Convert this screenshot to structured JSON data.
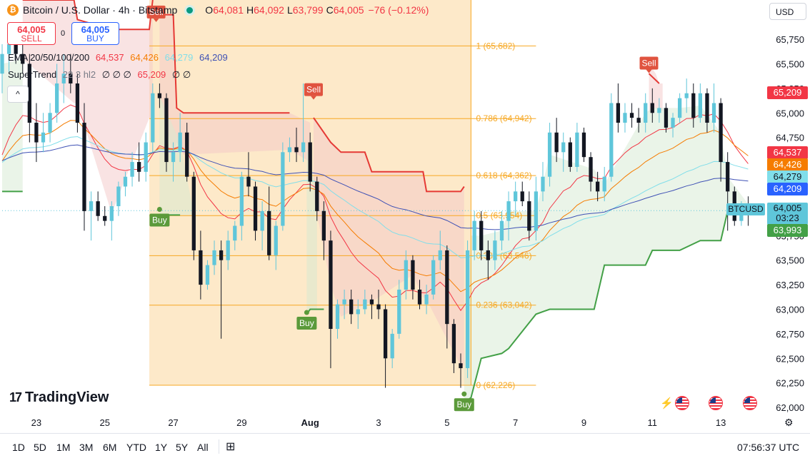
{
  "header": {
    "coin_glyph": "₿",
    "title": "Bitcoin / U.S. Dollar · 4h · Bitstamp",
    "o_label": "O",
    "o_value": "64,081",
    "h_label": "H",
    "h_value": "64,092",
    "l_label": "L",
    "l_value": "63,799",
    "c_label": "C",
    "c_value": "64,005",
    "change": "−76 (−0.12%)"
  },
  "trade": {
    "sell_price": "64,005",
    "sell_label": "SELL",
    "spread": "0",
    "buy_price": "64,005",
    "buy_label": "BUY"
  },
  "indicators": {
    "ema_label": "EMA 20/50/100/200",
    "ema_values": [
      "64,537",
      "64,426",
      "64,279",
      "64,209"
    ],
    "st_label": "SuperTrend",
    "st_params": "22 3 hl2",
    "st_nulls": "∅ ∅ ∅",
    "st_value": "65,209",
    "st_tail": "∅ ∅",
    "collapse_glyph": "^"
  },
  "currency_button": "USD",
  "symbol_tag": "BTCUSD",
  "price_now": "64,005",
  "countdown": "03:23",
  "price_labels": [
    "65,209",
    "64,537",
    "64,426",
    "64,279",
    "64,209",
    "63,993"
  ],
  "logo": {
    "mark": "17",
    "text": "TradingView"
  },
  "bottom": {
    "ranges": [
      "1D",
      "5D",
      "1M",
      "3M",
      "6M",
      "YTD",
      "1Y",
      "5Y",
      "All"
    ],
    "calendar_glyph": "⊞",
    "clock": "07:56:37 UTC",
    "gear_glyph": "⚙"
  },
  "colors": {
    "up": "#5fc6da",
    "down": "#131722",
    "ema20": "#f23645",
    "ema50": "#f57c00",
    "ema100": "#80deea",
    "ema200": "#3f51b5",
    "st_up": "#43a047",
    "st_down": "#e53935",
    "fib": "#f7a823"
  },
  "chart_data": {
    "type": "candlestick",
    "y_ticks": [
      62000,
      62250,
      62500,
      62750,
      63000,
      63250,
      63500,
      63750,
      64000,
      64250,
      64500,
      64750,
      65000,
      65250,
      65500,
      65750
    ],
    "ylim": [
      61950,
      66150
    ],
    "x_ticks": [
      "23",
      "25",
      "27",
      "29",
      "Aug",
      "3",
      "5",
      "7",
      "9",
      "11",
      "13"
    ],
    "fib_levels": [
      {
        "ratio": "1",
        "value": 65682
      },
      {
        "ratio": "0.786",
        "value": 64942
      },
      {
        "ratio": "0.618",
        "value": 64362
      },
      {
        "ratio": "0.5",
        "value": 63954
      },
      {
        "ratio": "0.382",
        "value": 63546
      },
      {
        "ratio": "0.236",
        "value": 63042
      },
      {
        "ratio": "0",
        "value": 62226
      }
    ],
    "signals": [
      {
        "label": "Sell",
        "dir": "sell",
        "x": 26.5,
        "y": 66020
      },
      {
        "label": "Buy",
        "dir": "buy",
        "x": 26.6,
        "y": 63930
      },
      {
        "label": "Sell",
        "dir": "sell",
        "x": 31.1,
        "y": 65230
      },
      {
        "label": "Buy",
        "dir": "buy",
        "x": 30.9,
        "y": 62880
      },
      {
        "label": "Buy",
        "dir": "buy",
        "x": 35.5,
        "y": 62050
      },
      {
        "label": "Sell",
        "dir": "sell",
        "x": 40.9,
        "y": 65500
      }
    ],
    "current_price": 64005,
    "candles": [
      [
        22.0,
        65400,
        65700,
        65200,
        65600
      ],
      [
        22.2,
        65600,
        65900,
        65400,
        65700
      ],
      [
        22.4,
        65700,
        65900,
        65500,
        65600
      ],
      [
        22.6,
        65600,
        65750,
        65400,
        65500
      ],
      [
        22.8,
        65500,
        65600,
        64700,
        64900
      ],
      [
        23.0,
        64900,
        65100,
        64500,
        64700
      ],
      [
        23.2,
        64700,
        65000,
        64600,
        64800
      ],
      [
        23.4,
        64800,
        65100,
        64700,
        65000
      ],
      [
        23.6,
        65000,
        65500,
        64900,
        65300
      ],
      [
        23.8,
        65300,
        65600,
        65100,
        65400
      ],
      [
        24.0,
        65400,
        65600,
        65200,
        65300
      ],
      [
        24.2,
        65300,
        65400,
        64800,
        64900
      ],
      [
        24.4,
        64900,
        65100,
        63800,
        64000
      ],
      [
        24.6,
        64000,
        64200,
        63700,
        64100
      ],
      [
        24.8,
        64100,
        64200,
        63900,
        63950
      ],
      [
        25.0,
        63950,
        64050,
        63850,
        63900
      ],
      [
        25.2,
        63900,
        64100,
        63700,
        64050
      ],
      [
        25.4,
        64050,
        64300,
        63950,
        64250
      ],
      [
        25.6,
        64250,
        64400,
        64150,
        64350
      ],
      [
        25.8,
        64350,
        64600,
        64250,
        64500
      ],
      [
        26.0,
        64500,
        64700,
        64300,
        64400
      ],
      [
        26.2,
        64400,
        64800,
        64300,
        64700
      ],
      [
        26.4,
        64700,
        65300,
        64600,
        65200
      ],
      [
        26.6,
        65200,
        65300,
        65050,
        65150
      ],
      [
        26.8,
        65150,
        65200,
        64400,
        64500
      ],
      [
        27.0,
        64500,
        64700,
        64300,
        64600
      ],
      [
        27.2,
        64600,
        65000,
        64500,
        64800
      ],
      [
        27.4,
        64800,
        64900,
        64300,
        64350
      ],
      [
        27.6,
        64350,
        64400,
        63500,
        63600
      ],
      [
        27.8,
        63600,
        63800,
        63100,
        63250
      ],
      [
        28.0,
        63250,
        63500,
        63200,
        63450
      ],
      [
        28.2,
        63450,
        63700,
        63350,
        63600
      ],
      [
        28.4,
        63600,
        63700,
        62700,
        63500
      ],
      [
        28.6,
        63500,
        63800,
        63400,
        63700
      ],
      [
        28.8,
        63700,
        63900,
        63600,
        63850
      ],
      [
        29.0,
        63850,
        64400,
        63700,
        64350
      ],
      [
        29.2,
        64350,
        64600,
        64150,
        64250
      ],
      [
        29.4,
        64250,
        64300,
        63700,
        63800
      ],
      [
        29.6,
        63800,
        64100,
        63600,
        64000
      ],
      [
        29.8,
        64000,
        64250,
        63500,
        63550
      ],
      [
        30.0,
        63550,
        63900,
        63400,
        63850
      ],
      [
        30.2,
        63850,
        64700,
        63800,
        64600
      ],
      [
        30.4,
        64600,
        64750,
        64500,
        64650
      ],
      [
        30.6,
        64650,
        64850,
        64500,
        64600
      ],
      [
        30.8,
        64600,
        65300,
        64500,
        64700
      ],
      [
        31.0,
        64700,
        64800,
        64200,
        64300
      ],
      [
        31.2,
        64300,
        64350,
        63900,
        64000
      ],
      [
        31.4,
        64000,
        64100,
        63500,
        63700
      ],
      [
        31.6,
        63700,
        63800,
        62400,
        62800
      ],
      [
        31.8,
        62800,
        63100,
        62700,
        63050
      ],
      [
        32.0,
        63050,
        63200,
        62900,
        63100
      ],
      [
        32.2,
        63100,
        63200,
        62850,
        62950
      ],
      [
        32.4,
        62950,
        63100,
        62800,
        63000
      ],
      [
        32.6,
        63000,
        63200,
        62950,
        63100
      ],
      [
        32.8,
        63100,
        63150,
        62900,
        63050
      ],
      [
        33.0,
        63050,
        63200,
        62900,
        63000
      ],
      [
        33.2,
        63000,
        63050,
        62200,
        62500
      ],
      [
        33.4,
        62500,
        62800,
        62400,
        62750
      ],
      [
        33.6,
        62750,
        63300,
        62700,
        63200
      ],
      [
        33.8,
        63200,
        63600,
        63100,
        63500
      ],
      [
        34.0,
        63500,
        63550,
        63100,
        63200
      ],
      [
        34.2,
        63200,
        63300,
        63000,
        63050
      ],
      [
        34.4,
        63050,
        63250,
        62950,
        63150
      ],
      [
        34.6,
        63150,
        63550,
        63100,
        63500
      ],
      [
        34.8,
        63500,
        63800,
        63400,
        63600
      ],
      [
        35.0,
        63600,
        63650,
        62600,
        62850
      ],
      [
        35.2,
        62850,
        62900,
        62350,
        62450
      ],
      [
        35.4,
        62450,
        62550,
        62200,
        62400
      ],
      [
        35.6,
        62400,
        63700,
        62300,
        63600
      ],
      [
        35.8,
        63600,
        64000,
        63500,
        63900
      ],
      [
        36.0,
        63900,
        64000,
        63500,
        63600
      ],
      [
        36.2,
        63600,
        63700,
        63300,
        63500
      ],
      [
        36.4,
        63500,
        63800,
        63400,
        63700
      ],
      [
        36.6,
        63700,
        64000,
        63600,
        63900
      ],
      [
        36.8,
        63900,
        64200,
        63700,
        64100
      ],
      [
        37.0,
        64100,
        64300,
        63950,
        64200
      ],
      [
        37.2,
        64200,
        64300,
        64050,
        64100
      ],
      [
        37.4,
        64100,
        64200,
        63700,
        63800
      ],
      [
        37.6,
        63800,
        64350,
        63700,
        64200
      ],
      [
        37.8,
        64200,
        64500,
        64100,
        64350
      ],
      [
        38.0,
        64350,
        64900,
        64250,
        64800
      ],
      [
        38.2,
        64800,
        64950,
        64500,
        64600
      ],
      [
        38.4,
        64600,
        64800,
        64400,
        64700
      ],
      [
        38.6,
        64700,
        64750,
        64400,
        64450
      ],
      [
        38.8,
        64450,
        64900,
        64400,
        64800
      ],
      [
        39.0,
        64800,
        64850,
        64500,
        64550
      ],
      [
        39.2,
        64550,
        64600,
        64200,
        64300
      ],
      [
        39.4,
        64300,
        64400,
        64100,
        64200
      ],
      [
        39.6,
        64200,
        64450,
        64100,
        64350
      ],
      [
        39.8,
        64350,
        65200,
        64300,
        65100
      ],
      [
        40.0,
        65100,
        65300,
        64800,
        64900
      ],
      [
        40.2,
        64900,
        65100,
        64800,
        65000
      ],
      [
        40.4,
        65000,
        65100,
        64850,
        64950
      ],
      [
        40.6,
        64950,
        65050,
        64800,
        64900
      ],
      [
        40.8,
        64900,
        65200,
        64800,
        65100
      ],
      [
        41.0,
        65100,
        65250,
        64900,
        65000
      ],
      [
        41.2,
        65000,
        65150,
        64900,
        65050
      ],
      [
        41.4,
        65050,
        65100,
        64800,
        64850
      ],
      [
        41.6,
        64850,
        65000,
        64750,
        64950
      ],
      [
        41.8,
        64950,
        65200,
        64900,
        65150
      ],
      [
        42.0,
        65150,
        65350,
        65000,
        65200
      ],
      [
        42.2,
        65200,
        65300,
        64850,
        64950
      ],
      [
        42.4,
        64950,
        65300,
        64900,
        65200
      ],
      [
        42.6,
        65200,
        65250,
        64800,
        64900
      ],
      [
        42.8,
        64900,
        65300,
        64800,
        65100
      ],
      [
        43.0,
        65100,
        65150,
        64300,
        64500
      ],
      [
        43.2,
        64500,
        64600,
        63800,
        64200
      ],
      [
        43.4,
        64200,
        64250,
        63850,
        63900
      ],
      [
        43.6,
        63900,
        64100,
        63850,
        64050
      ],
      [
        43.8,
        64050,
        64150,
        63850,
        64000
      ]
    ]
  }
}
